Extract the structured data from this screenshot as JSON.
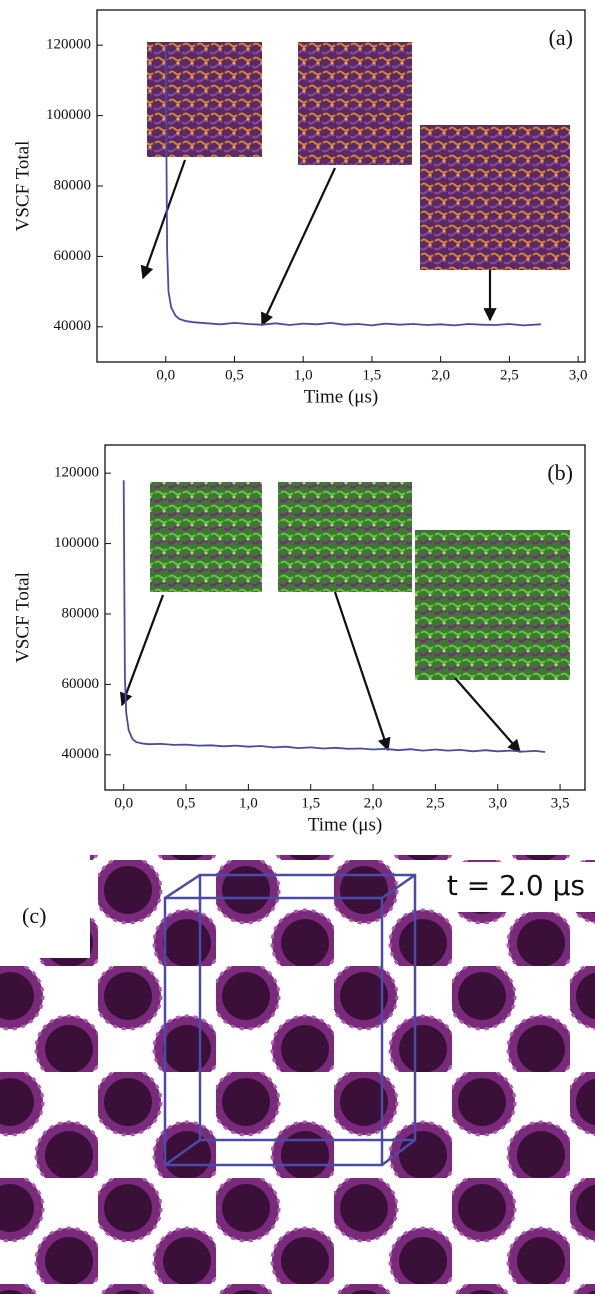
{
  "chart_data": [
    {
      "type": "line",
      "annotation": "(a)",
      "x_label": "Time (μs)",
      "y_label": "VSCF Total",
      "x": [
        0,
        0.01,
        0.02,
        0.04,
        0.07,
        0.1,
        0.15,
        0.2,
        0.3,
        0.4,
        0.5,
        0.6,
        0.7,
        0.8,
        0.9,
        1.0,
        1.1,
        1.2,
        1.3,
        1.4,
        1.5,
        1.6,
        1.7,
        1.8,
        1.9,
        2.0,
        2.1,
        2.2,
        2.3,
        2.4,
        2.5,
        2.6,
        2.73
      ],
      "series": [
        {
          "name": "VSCF Total",
          "color": "#4a4aa8",
          "values": [
            120000,
            62000,
            50000,
            45500,
            43200,
            42200,
            41600,
            41300,
            41000,
            40700,
            41100,
            40800,
            40600,
            41000,
            40500,
            40900,
            40700,
            41100,
            40600,
            40800,
            40400,
            40900,
            40600,
            40800,
            40500,
            40700,
            40400,
            40800,
            40600,
            40500,
            40800,
            40400,
            40700
          ]
        }
      ],
      "xlim": [
        -0.5,
        3.05
      ],
      "ylim": [
        30000,
        130000
      ],
      "xticks": [
        {
          "value": 0,
          "label": "0,0"
        },
        {
          "value": 0.5,
          "label": "0,5"
        },
        {
          "value": 1,
          "label": "1,0"
        },
        {
          "value": 1.5,
          "label": "1,5"
        },
        {
          "value": 2,
          "label": "2,0"
        },
        {
          "value": 2.5,
          "label": "2,5"
        },
        {
          "value": 3,
          "label": "3,0"
        }
      ],
      "yticks": [
        40000,
        60000,
        80000,
        100000,
        120000
      ]
    },
    {
      "type": "line",
      "annotation": "(b)",
      "x_label": "Time (μs)",
      "y_label": "VSCF Total",
      "x": [
        0,
        0.01,
        0.02,
        0.04,
        0.07,
        0.1,
        0.15,
        0.2,
        0.3,
        0.4,
        0.5,
        0.6,
        0.7,
        0.8,
        0.9,
        1.0,
        1.1,
        1.2,
        1.3,
        1.4,
        1.5,
        1.6,
        1.7,
        1.8,
        1.9,
        2.0,
        2.1,
        2.2,
        2.3,
        2.4,
        2.5,
        2.6,
        2.7,
        2.8,
        2.9,
        3.0,
        3.1,
        3.2,
        3.3,
        3.38
      ],
      "series": [
        {
          "name": "VSCF Total",
          "color": "#4a4aa8",
          "values": [
            118000,
            62000,
            52000,
            47000,
            44500,
            43600,
            43200,
            43000,
            43100,
            42800,
            42900,
            42600,
            42700,
            42400,
            42600,
            42300,
            42500,
            42100,
            42300,
            41900,
            42100,
            41800,
            42000,
            41700,
            41800,
            41500,
            41700,
            41300,
            41600,
            41200,
            41500,
            41200,
            41400,
            41000,
            41300,
            41000,
            41200,
            40900,
            41100,
            40800
          ]
        }
      ],
      "xlim": [
        -0.15,
        3.7
      ],
      "ylim": [
        30000,
        128000
      ],
      "xticks": [
        {
          "value": 0,
          "label": "0,0"
        },
        {
          "value": 0.5,
          "label": "0,5"
        },
        {
          "value": 1,
          "label": "1,0"
        },
        {
          "value": 1.5,
          "label": "1,5"
        },
        {
          "value": 2,
          "label": "2,0"
        },
        {
          "value": 2.5,
          "label": "2,5"
        },
        {
          "value": 3,
          "label": "3,0"
        },
        {
          "value": 3.5,
          "label": "3,5"
        }
      ],
      "yticks": [
        40000,
        60000,
        80000,
        100000,
        120000
      ]
    }
  ],
  "panel_c": {
    "label": "(c)",
    "annotation": "t = 2.0 μs"
  }
}
